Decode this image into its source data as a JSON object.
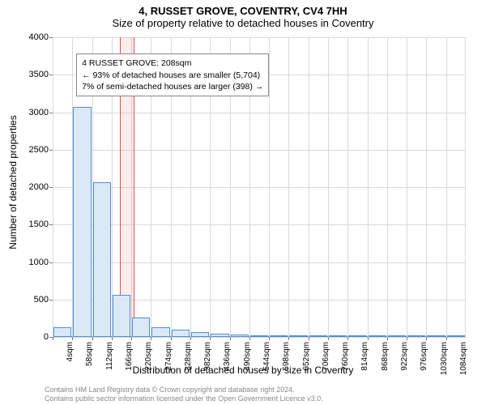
{
  "title": "4, RUSSET GROVE, COVENTRY, CV4 7HH",
  "subtitle": "Size of property relative to detached houses in Coventry",
  "chart": {
    "type": "histogram",
    "ylabel": "Number of detached properties",
    "xlabel": "Distribution of detached houses by size in Coventry",
    "ylim": [
      0,
      4000
    ],
    "ytick_step": 500,
    "yticks": [
      0,
      500,
      1000,
      1500,
      2000,
      2500,
      3000,
      3500,
      4000
    ],
    "xticks": [
      "4sqm",
      "58sqm",
      "112sqm",
      "166sqm",
      "220sqm",
      "274sqm",
      "328sqm",
      "382sqm",
      "436sqm",
      "490sqm",
      "544sqm",
      "598sqm",
      "652sqm",
      "706sqm",
      "760sqm",
      "814sqm",
      "868sqm",
      "922sqm",
      "976sqm",
      "1030sqm",
      "1084sqm"
    ],
    "categories": [
      "4",
      "58",
      "112",
      "166",
      "220",
      "274",
      "328",
      "382",
      "436",
      "490",
      "544",
      "598",
      "652",
      "706",
      "760",
      "814",
      "868",
      "922",
      "976",
      "1030",
      "1084"
    ],
    "values": [
      130,
      3070,
      2060,
      560,
      260,
      130,
      95,
      70,
      40,
      30,
      20,
      12,
      8,
      6,
      4,
      3,
      2,
      2,
      1,
      1,
      1
    ],
    "bar_color": "#dbe9f6",
    "bar_border_color": "#4a90d9",
    "grid_color": "#d9d9de",
    "background_color": "#ffffff",
    "label_fontsize": 12,
    "tick_fontsize": 11,
    "highlight": {
      "index_start": 3,
      "index_end": 4,
      "fill": "rgba(255,0,0,0.07)",
      "border": "#e94b4b"
    },
    "info_box": {
      "line1": "4 RUSSET GROVE: 208sqm",
      "line2": "← 93% of detached houses are smaller (5,704)",
      "line3": "7% of semi-detached houses are larger (398) →",
      "border_color": "#888888",
      "background": "#ffffff",
      "fontsize": 10.5,
      "x_bar_index": 1.2,
      "y_value": 3780
    }
  },
  "footer": {
    "line1": "Contains HM Land Registry data © Crown copyright and database right 2024.",
    "line2": "Contains public sector information licensed under the Open Government Licence v3.0.",
    "color": "#888888",
    "fontsize": 9
  }
}
